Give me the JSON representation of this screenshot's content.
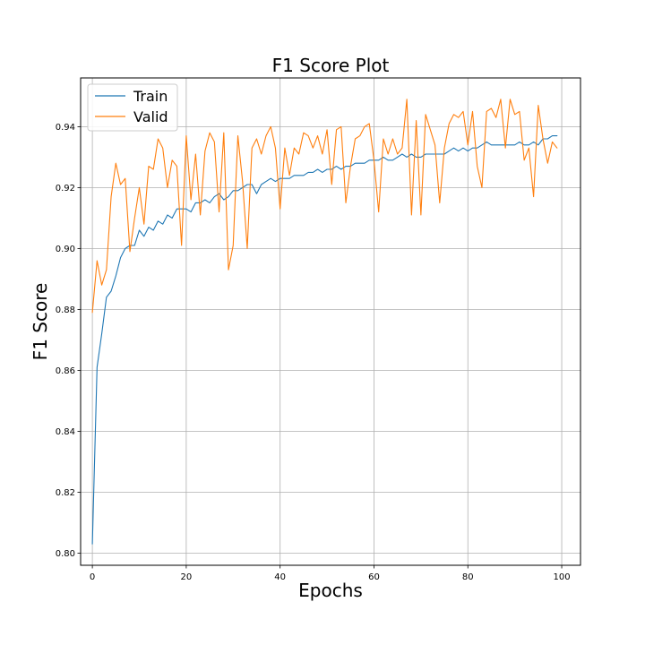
{
  "chart_data": {
    "type": "line",
    "title": "F1 Score Plot",
    "xlabel": "Epochs",
    "ylabel": "F1 Score",
    "xlim": [
      -2.5,
      104
    ],
    "ylim": [
      0.796,
      0.956
    ],
    "xticks": [
      0,
      20,
      40,
      60,
      80,
      100
    ],
    "yticks": [
      0.8,
      0.82,
      0.84,
      0.86,
      0.88,
      0.9,
      0.92,
      0.94
    ],
    "ytick_labels": [
      "0.80",
      "0.82",
      "0.84",
      "0.86",
      "0.88",
      "0.90",
      "0.92",
      "0.94"
    ],
    "grid": true,
    "legend_position": "top-left",
    "x": [
      0,
      1,
      2,
      3,
      4,
      5,
      6,
      7,
      8,
      9,
      10,
      11,
      12,
      13,
      14,
      15,
      16,
      17,
      18,
      19,
      20,
      21,
      22,
      23,
      24,
      25,
      26,
      27,
      28,
      29,
      30,
      31,
      32,
      33,
      34,
      35,
      36,
      37,
      38,
      39,
      40,
      41,
      42,
      43,
      44,
      45,
      46,
      47,
      48,
      49,
      50,
      51,
      52,
      53,
      54,
      55,
      56,
      57,
      58,
      59,
      60,
      61,
      62,
      63,
      64,
      65,
      66,
      67,
      68,
      69,
      70,
      71,
      72,
      73,
      74,
      75,
      76,
      77,
      78,
      79,
      80,
      81,
      82,
      83,
      84,
      85,
      86,
      87,
      88,
      89,
      90,
      91,
      92,
      93,
      94,
      95,
      96,
      97,
      98,
      99
    ],
    "series": [
      {
        "name": "Train",
        "color": "#1f77b4",
        "values": [
          0.803,
          0.861,
          0.872,
          0.884,
          0.886,
          0.891,
          0.897,
          0.9,
          0.901,
          0.901,
          0.906,
          0.904,
          0.907,
          0.906,
          0.909,
          0.908,
          0.911,
          0.91,
          0.913,
          0.913,
          0.913,
          0.912,
          0.915,
          0.915,
          0.916,
          0.915,
          0.917,
          0.918,
          0.916,
          0.917,
          0.919,
          0.919,
          0.92,
          0.921,
          0.921,
          0.918,
          0.921,
          0.922,
          0.923,
          0.922,
          0.923,
          0.923,
          0.923,
          0.924,
          0.924,
          0.924,
          0.925,
          0.925,
          0.926,
          0.925,
          0.926,
          0.926,
          0.927,
          0.926,
          0.927,
          0.927,
          0.928,
          0.928,
          0.928,
          0.929,
          0.929,
          0.929,
          0.93,
          0.929,
          0.929,
          0.93,
          0.931,
          0.93,
          0.931,
          0.93,
          0.93,
          0.931,
          0.931,
          0.931,
          0.931,
          0.931,
          0.932,
          0.933,
          0.932,
          0.933,
          0.932,
          0.933,
          0.933,
          0.934,
          0.935,
          0.934,
          0.934,
          0.934,
          0.934,
          0.934,
          0.934,
          0.935,
          0.934,
          0.934,
          0.935,
          0.934,
          0.936,
          0.936,
          0.937,
          0.937
        ]
      },
      {
        "name": "Valid",
        "color": "#ff7f0e",
        "values": [
          0.879,
          0.896,
          0.888,
          0.893,
          0.917,
          0.928,
          0.921,
          0.923,
          0.899,
          0.91,
          0.92,
          0.908,
          0.927,
          0.926,
          0.936,
          0.933,
          0.92,
          0.929,
          0.927,
          0.901,
          0.937,
          0.916,
          0.931,
          0.911,
          0.932,
          0.938,
          0.935,
          0.912,
          0.938,
          0.893,
          0.901,
          0.937,
          0.922,
          0.9,
          0.933,
          0.936,
          0.931,
          0.937,
          0.94,
          0.933,
          0.913,
          0.933,
          0.924,
          0.933,
          0.931,
          0.938,
          0.937,
          0.933,
          0.937,
          0.931,
          0.939,
          0.921,
          0.939,
          0.94,
          0.915,
          0.927,
          0.936,
          0.937,
          0.94,
          0.941,
          0.929,
          0.912,
          0.936,
          0.931,
          0.936,
          0.931,
          0.933,
          0.949,
          0.911,
          0.942,
          0.911,
          0.944,
          0.939,
          0.934,
          0.915,
          0.933,
          0.941,
          0.944,
          0.943,
          0.945,
          0.934,
          0.945,
          0.927,
          0.92,
          0.945,
          0.946,
          0.943,
          0.949,
          0.933,
          0.949,
          0.944,
          0.945,
          0.929,
          0.933,
          0.917,
          0.947,
          0.936,
          0.928,
          0.935,
          0.933
        ]
      }
    ]
  }
}
